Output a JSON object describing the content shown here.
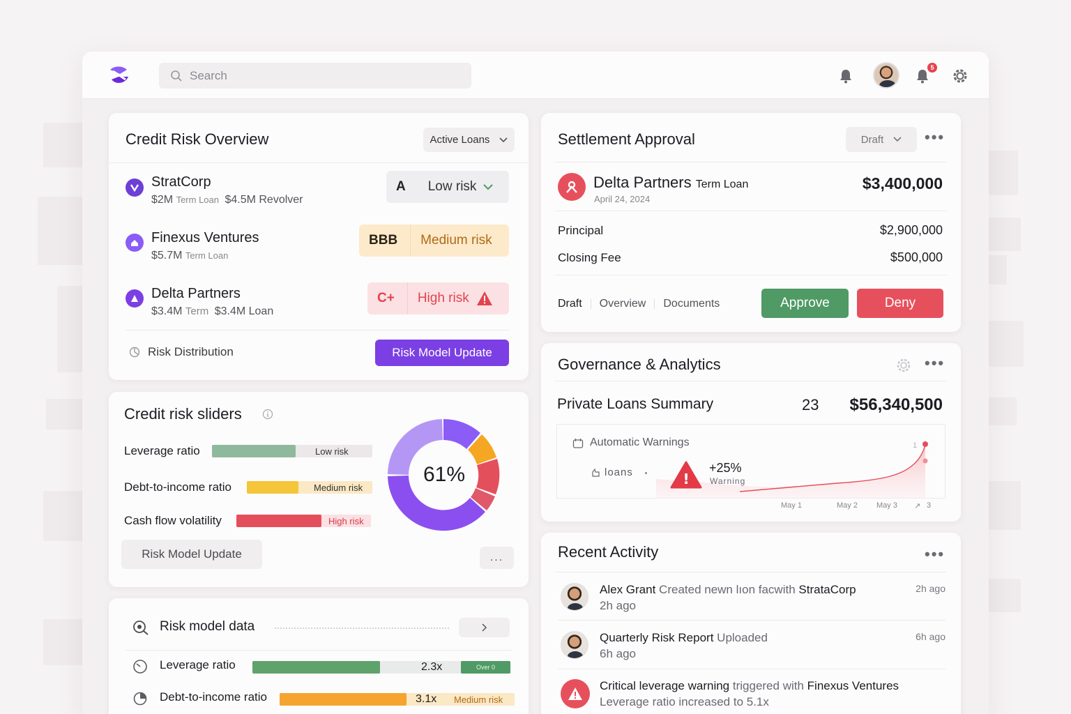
{
  "search": {
    "placeholder": "Search"
  },
  "header": {
    "notification_count": "5"
  },
  "credit_risk_overview": {
    "title": "Credit Risk Overview",
    "filter": "Active Loans",
    "entities": [
      {
        "name": "StratCorp",
        "amount1": "$2M",
        "type1": "Term Loan",
        "amount2": "$4.5M Revolver",
        "grade": "A",
        "risk": "Low risk"
      },
      {
        "name": "Finexus Ventures",
        "amount1": "$5.7M",
        "type1": "Term Loan",
        "amount2": "",
        "grade": "BBB",
        "risk": "Medium risk"
      },
      {
        "name": "Delta Partners",
        "amount1": "$3.4M",
        "type1": "Term",
        "amount2": "$3.4M Loan",
        "grade": "C+",
        "risk": "High risk"
      }
    ],
    "risk_distribution_label": "Risk Distribution",
    "update_button": "Risk Model Update"
  },
  "credit_risk_sliders": {
    "title": "Credit risk sliders",
    "items": [
      {
        "label": "Leverage ratio",
        "tag": "Low risk",
        "fill": 0.52,
        "color": "#8fb99c"
      },
      {
        "label": "Debt-to-income ratio",
        "tag": "Medium risk",
        "fill": 0.41,
        "color": "#f5c53a"
      },
      {
        "label": "Cash flow volatility",
        "tag": "High risk",
        "fill": 0.63,
        "color": "#e44f5c"
      }
    ],
    "donut_value": "61%",
    "update_button": "Risk Model Update",
    "more": "..."
  },
  "risk_model_data": {
    "title": "Risk model data",
    "items": [
      {
        "label": "Leverage ratio",
        "value": "2.3x",
        "tag": "Over 0"
      },
      {
        "label": "Debt-to-income ratio",
        "value": "3.1x",
        "tag": "Medium risk"
      }
    ]
  },
  "settlement": {
    "title": "Settlement Approval",
    "status": "Draft",
    "party": "Delta Partners",
    "loan_type": "Term Loan",
    "date": "April 24, 2024",
    "total": "$3,400,000",
    "lines": [
      {
        "label": "Principal",
        "value": "$2,900,000"
      },
      {
        "label": "Closing Fee",
        "value": "$500,000"
      }
    ],
    "tabs": [
      "Draft",
      "Overview",
      "Documents"
    ],
    "approve": "Approve",
    "deny": "Deny"
  },
  "governance": {
    "title": "Governance & Analytics",
    "summary_label": "Private Loans Summary",
    "summary_count": "23",
    "summary_value": "$56,340,500",
    "warnings_label": "Automatic Warnings",
    "loans_label": "loans",
    "change": "+25%",
    "change_label": "Warning",
    "x_labels": [
      "May 1",
      "May 2",
      "May 3",
      "3"
    ],
    "y_tick": "1"
  },
  "recent_activity": {
    "title": "Recent Activity",
    "items": [
      {
        "actor": "Alex Grant",
        "action": "Created newn lıon facwith",
        "target": "StrataCorp",
        "sub": "2h ago",
        "time": "2h ago"
      },
      {
        "actor": "Quarterly Risk Report",
        "action": "Uploaded",
        "target": "",
        "sub": "6h ago",
        "time": "6h ago"
      },
      {
        "actor": "Critical leverage warning",
        "action": "triggered with",
        "target": "Finexus Ventures",
        "sub": "Leverage ratio increased to 5.1x",
        "time": ""
      }
    ]
  },
  "colors": {
    "accent": "#7b3fe4",
    "low": "#8fb99c",
    "medium": "#f5c53a",
    "high": "#e44f5c",
    "approve": "#4f9a65",
    "deny": "#e6505c"
  }
}
